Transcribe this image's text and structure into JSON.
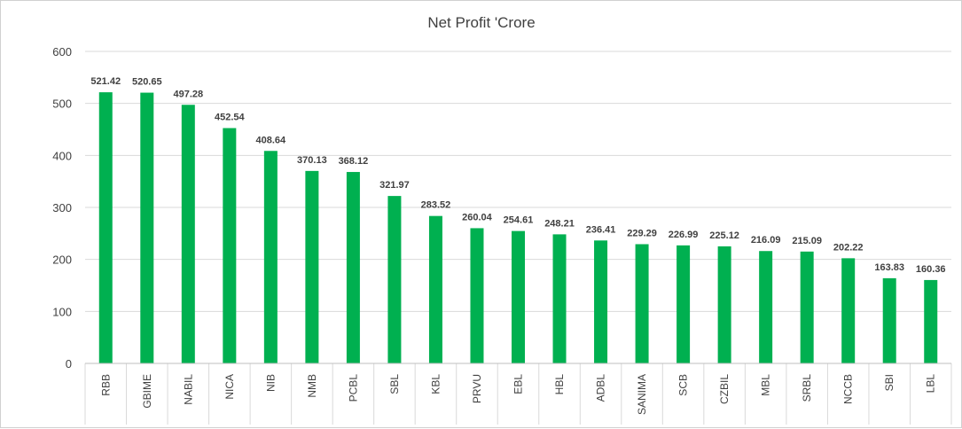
{
  "chart_data": {
    "type": "bar",
    "title": "Net Profit 'Crore",
    "xlabel": "",
    "ylabel": "",
    "ylim": [
      0,
      600
    ],
    "yticks": [
      0,
      100,
      200,
      300,
      400,
      500,
      600
    ],
    "grid": true,
    "legend": "none",
    "bar_color": "#00b050",
    "categories": [
      "RBB",
      "GBIME",
      "NABIL",
      "NICA",
      "NIB",
      "NMB",
      "PCBL",
      "SBL",
      "KBL",
      "PRVU",
      "EBL",
      "HBL",
      "ADBL",
      "SANIMA",
      "SCB",
      "CZBIL",
      "MBL",
      "SRBL",
      "NCCB",
      "SBI",
      "LBL"
    ],
    "values": [
      521.42,
      520.65,
      497.28,
      452.54,
      408.64,
      370.13,
      368.12,
      321.97,
      283.52,
      260.04,
      254.61,
      248.21,
      236.41,
      229.29,
      226.99,
      225.12,
      216.09,
      215.09,
      202.22,
      163.83,
      160.36
    ],
    "data_labels": [
      "521.42",
      "520.65",
      "497.28",
      "452.54",
      "408.64",
      "370.13",
      "368.12",
      "321.97",
      "283.52",
      "260.04",
      "254.61",
      "248.21",
      "236.41",
      "229.29",
      "226.99",
      "225.12",
      "216.09",
      "215.09",
      "202.22",
      "163.83",
      "160.36"
    ]
  }
}
